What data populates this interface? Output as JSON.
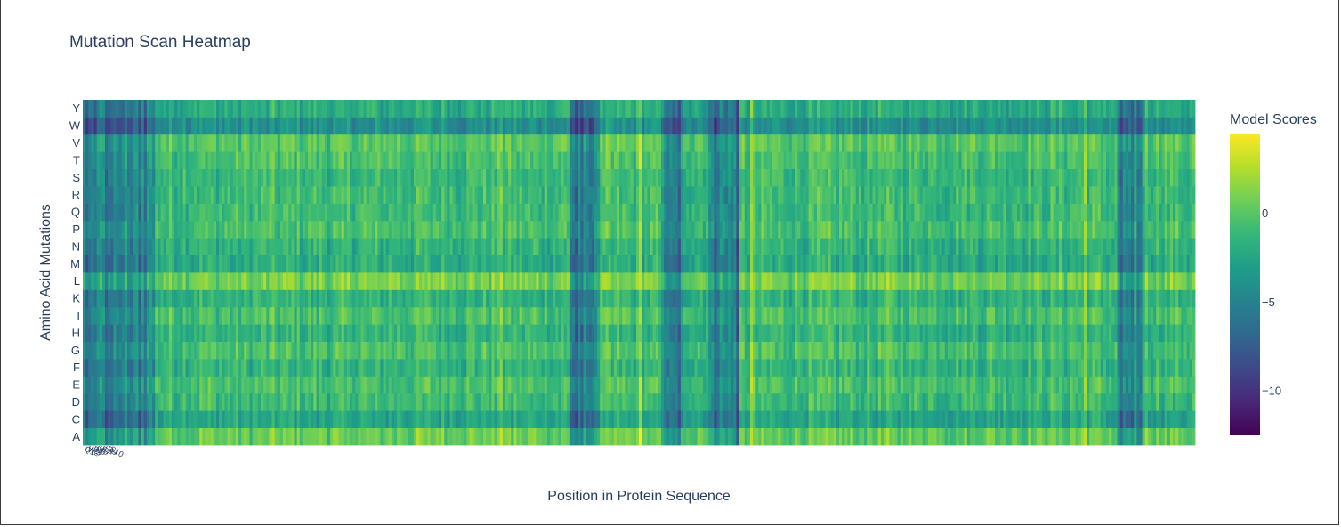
{
  "chart_data": {
    "type": "heatmap",
    "title": "Mutation Scan Heatmap",
    "xlabel": "Position in Protein Sequence",
    "ylabel": "Amino Acid Mutations",
    "y_categories": [
      "A",
      "C",
      "D",
      "E",
      "F",
      "G",
      "H",
      "I",
      "K",
      "L",
      "M",
      "N",
      "P",
      "Q",
      "R",
      "S",
      "T",
      "V",
      "W",
      "Y"
    ],
    "x_count": 400,
    "colorbar": {
      "title": "Model Scores",
      "range": [
        -12.5,
        4.5
      ],
      "ticks": [
        0,
        -5,
        -10
      ],
      "tick_labels": [
        "0",
        "−5",
        "−10"
      ],
      "colorscale": "Viridis",
      "colors": [
        "#440154",
        "#482878",
        "#3e4989",
        "#31688e",
        "#26828e",
        "#1f9e89",
        "#35b779",
        "#6ece58",
        "#b5de2b",
        "#fde725"
      ]
    },
    "row_bias": {
      "A": 0.5,
      "C": -2.5,
      "D": -1.0,
      "E": -0.5,
      "F": -1.5,
      "G": -0.5,
      "H": -1.5,
      "I": -0.5,
      "K": -1.5,
      "L": 1.0,
      "M": -2.0,
      "N": -1.5,
      "P": -0.5,
      "Q": -1.0,
      "R": -1.0,
      "S": -1.0,
      "T": -0.5,
      "V": 0.0,
      "W": -4.0,
      "Y": -2.0
    },
    "low_score_position_ranges": [
      [
        0,
        25
      ],
      [
        175,
        185
      ],
      [
        208,
        215
      ],
      [
        225,
        235
      ],
      [
        372,
        380
      ]
    ],
    "high_score_positions": [
      3,
      150,
      200,
      215,
      225,
      240,
      360
    ],
    "x_tick_labels": [
      "Q1",
      "W2",
      "M3",
      "D4",
      "P5",
      "K6",
      "E7",
      "L8",
      "R9",
      "S10"
    ]
  }
}
